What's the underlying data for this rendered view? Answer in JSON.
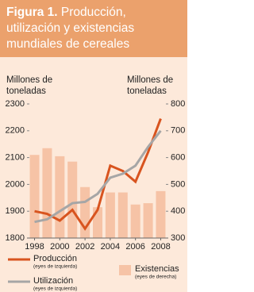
{
  "chart_data": {
    "type": "combo",
    "title_prefix": "Figura 1.",
    "title": "Producción, utilización y existencias mundiales de cereales",
    "y_label": "Millones de toneladas",
    "y2_label": "Millones de toneladas",
    "x": [
      1998,
      1999,
      2000,
      2001,
      2002,
      2003,
      2004,
      2005,
      2006,
      2007,
      2008
    ],
    "xlim": [
      1997.4,
      2008.6
    ],
    "xticks": [
      1998,
      2000,
      2002,
      2004,
      2006,
      2008
    ],
    "ylim": [
      1800,
      2300
    ],
    "yticks": [
      1800,
      1900,
      2000,
      2100,
      2200,
      2300
    ],
    "y2lim": [
      300,
      800
    ],
    "y2ticks": [
      300,
      400,
      500,
      600,
      700,
      800
    ],
    "series": [
      {
        "name": "Existencias",
        "note": "(eyes de derecha)",
        "type": "bar",
        "axis": "y2",
        "color": "#f6c3a6",
        "values": [
          610,
          635,
          605,
          585,
          490,
          415,
          470,
          470,
          425,
          430,
          475
        ]
      },
      {
        "name": "Producción",
        "note": "(eyes de izquierda)",
        "type": "line",
        "color": "#d8541f",
        "values": [
          1900,
          1890,
          1865,
          1905,
          1835,
          1905,
          2070,
          2050,
          2010,
          2120,
          2245
        ]
      },
      {
        "name": "Utilización",
        "note": "(eyes de izquierda)",
        "type": "line",
        "color": "#a6a6a6",
        "values": [
          1860,
          1870,
          1900,
          1930,
          1935,
          1965,
          2025,
          2040,
          2070,
          2140,
          2200
        ]
      }
    ]
  }
}
